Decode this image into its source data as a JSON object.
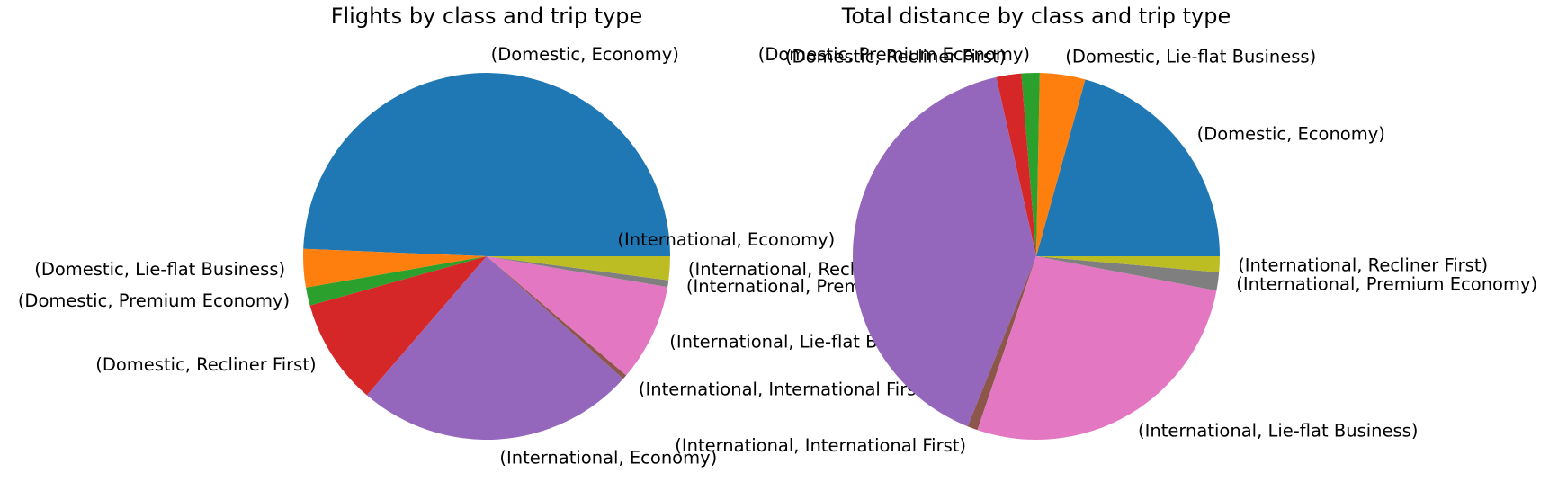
{
  "chart_data": [
    {
      "type": "pie",
      "title": "Flights by class and trip type",
      "start_angle_deg": 0,
      "direction": "counterclockwise",
      "slices": [
        {
          "label": "(Domestic, Economy)",
          "value": 49.6,
          "color": "#1f77b4"
        },
        {
          "label": "(Domestic, Lie-flat Business)",
          "value": 3.4,
          "color": "#ff7f0e"
        },
        {
          "label": "(Domestic, Premium Economy)",
          "value": 1.6,
          "color": "#2ca02c"
        },
        {
          "label": "(Domestic, Recliner First)",
          "value": 9.4,
          "color": "#d62728"
        },
        {
          "label": "(International, Economy)",
          "value": 24.8,
          "color": "#9467bd"
        },
        {
          "label": "(International, International First)",
          "value": 0.4,
          "color": "#8c564b"
        },
        {
          "label": "(International, Lie-flat Business)",
          "value": 8.6,
          "color": "#e377c2"
        },
        {
          "label": "(International, Premium Economy)",
          "value": 0.6,
          "color": "#7f7f7f"
        },
        {
          "label": "(International, Recliner First)",
          "value": 2.1,
          "color": "#bcbd22"
        }
      ]
    },
    {
      "type": "pie",
      "title": "Total distance by class and trip type",
      "start_angle_deg": 0,
      "direction": "counterclockwise",
      "slices": [
        {
          "label": "(Domestic, Economy)",
          "value": 20.7,
          "color": "#1f77b4"
        },
        {
          "label": "(Domestic, Lie-flat Business)",
          "value": 4.0,
          "color": "#ff7f0e"
        },
        {
          "label": "(Domestic, Premium Economy)",
          "value": 1.6,
          "color": "#2ca02c"
        },
        {
          "label": "(Domestic, Recliner First)",
          "value": 2.2,
          "color": "#d62728"
        },
        {
          "label": "(International, Economy)",
          "value": 40.4,
          "color": "#9467bd"
        },
        {
          "label": "(International, International First)",
          "value": 0.9,
          "color": "#8c564b"
        },
        {
          "label": "(International, Lie-flat Business)",
          "value": 27.2,
          "color": "#e377c2"
        },
        {
          "label": "(International, Premium Economy)",
          "value": 1.6,
          "color": "#7f7f7f"
        },
        {
          "label": "(International, Recliner First)",
          "value": 1.4,
          "color": "#bcbd22"
        }
      ]
    }
  ]
}
